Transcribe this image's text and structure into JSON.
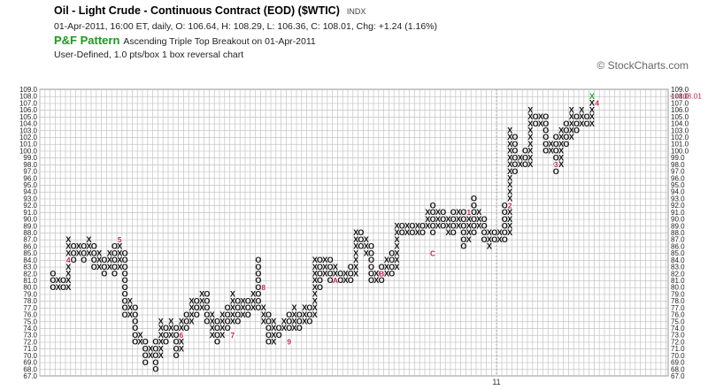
{
  "header": {
    "title": "Oil - Light Crude - Continuous Contract (EOD) ($WTIC)",
    "symbol_tag": "INDX",
    "ohlc_line": "01-Apr-2011, 16:00 ET, daily, O: 106.64, H: 108.29, L: 106.36, C: 108.01, Chg: +1.24 (1.16%)",
    "pattern_label": "P&F Pattern",
    "pattern_desc": "Ascending Triple Top Breakout on 01-Apr-2011",
    "settings": "User-Defined, 1.0 pts/box 1 box reversal chart"
  },
  "watermark": "© StockCharts.com",
  "colors": {
    "x_mark": "#111111",
    "o_mark": "#111111",
    "month_marker": "#cc2255",
    "latest_x": "#22aa22",
    "last_price": "#cc2255",
    "pattern_green": "#1e9a1e",
    "grid": "#c4c4c4"
  },
  "chart_data": {
    "type": "point-and-figure",
    "box_size": 1.0,
    "reversal": 1,
    "ylim": [
      67,
      109
    ],
    "y_ticks": [
      67,
      68,
      69,
      70,
      71,
      72,
      73,
      74,
      75,
      76,
      77,
      78,
      79,
      80,
      81,
      82,
      83,
      84,
      85,
      86,
      87,
      88,
      89,
      90,
      91,
      92,
      93,
      94,
      95,
      96,
      97,
      98,
      99,
      100,
      101,
      102,
      103,
      104,
      105,
      106,
      107,
      108,
      109
    ],
    "last_price": 108.01,
    "last_price_label": "108.01",
    "x_axis_label": "11",
    "columns": [
      {
        "type": "O",
        "high": 82,
        "low": 80
      },
      {
        "type": "X",
        "high": 81,
        "low": 80
      },
      {
        "type": "O",
        "high": 81,
        "low": 80
      },
      {
        "type": "X",
        "high": 87,
        "low": 80
      },
      {
        "type": "O",
        "high": 86,
        "low": 84
      },
      {
        "type": "X",
        "high": 86,
        "low": 85
      },
      {
        "type": "O",
        "high": 86,
        "low": 84
      },
      {
        "type": "X",
        "high": 87,
        "low": 85
      },
      {
        "type": "O",
        "high": 86,
        "low": 83
      },
      {
        "type": "X",
        "high": 85,
        "low": 83
      },
      {
        "type": "O",
        "high": 84,
        "low": 82
      },
      {
        "type": "X",
        "high": 85,
        "low": 83
      },
      {
        "type": "O",
        "high": 86,
        "low": 82
      },
      {
        "type": "X",
        "high": 87,
        "low": 83
      },
      {
        "type": "O",
        "high": 85,
        "low": 76
      },
      {
        "type": "X",
        "high": 78,
        "low": 76
      },
      {
        "type": "O",
        "high": 77,
        "low": 72
      },
      {
        "type": "X",
        "high": 73,
        "low": 72
      },
      {
        "type": "O",
        "high": 72,
        "low": 69
      },
      {
        "type": "X",
        "high": 71,
        "low": 70
      },
      {
        "type": "O",
        "high": 72,
        "low": 68
      },
      {
        "type": "X",
        "high": 75,
        "low": 70
      },
      {
        "type": "O",
        "high": 74,
        "low": 72
      },
      {
        "type": "X",
        "high": 75,
        "low": 73
      },
      {
        "type": "O",
        "high": 74,
        "low": 70
      },
      {
        "type": "X",
        "high": 75,
        "low": 71
      },
      {
        "type": "O",
        "high": 76,
        "low": 74
      },
      {
        "type": "X",
        "high": 78,
        "low": 75
      },
      {
        "type": "O",
        "high": 78,
        "low": 76
      },
      {
        "type": "X",
        "high": 79,
        "low": 77
      },
      {
        "type": "O",
        "high": 79,
        "low": 75
      },
      {
        "type": "X",
        "high": 76,
        "low": 73
      },
      {
        "type": "O",
        "high": 75,
        "low": 72
      },
      {
        "type": "X",
        "high": 76,
        "low": 73
      },
      {
        "type": "O",
        "high": 77,
        "low": 74
      },
      {
        "type": "X",
        "high": 79,
        "low": 75
      },
      {
        "type": "O",
        "high": 78,
        "low": 75
      },
      {
        "type": "X",
        "high": 78,
        "low": 76
      },
      {
        "type": "O",
        "high": 78,
        "low": 76
      },
      {
        "type": "X",
        "high": 79,
        "low": 77
      },
      {
        "type": "O",
        "high": 84,
        "low": 77
      },
      {
        "type": "X",
        "high": 77,
        "low": 75
      },
      {
        "type": "O",
        "high": 76,
        "low": 72
      },
      {
        "type": "X",
        "high": 75,
        "low": 72
      },
      {
        "type": "O",
        "high": 74,
        "low": 73
      },
      {
        "type": "X",
        "high": 75,
        "low": 74
      },
      {
        "type": "O",
        "high": 76,
        "low": 74
      },
      {
        "type": "X",
        "high": 77,
        "low": 74
      },
      {
        "type": "O",
        "high": 76,
        "low": 74
      },
      {
        "type": "X",
        "high": 77,
        "low": 75
      },
      {
        "type": "O",
        "high": 77,
        "low": 75
      },
      {
        "type": "X",
        "high": 84,
        "low": 76
      },
      {
        "type": "O",
        "high": 84,
        "low": 80
      },
      {
        "type": "X",
        "high": 84,
        "low": 82
      },
      {
        "type": "O",
        "high": 84,
        "low": 81
      },
      {
        "type": "X",
        "high": 83,
        "low": 81
      },
      {
        "type": "O",
        "high": 82,
        "low": 81
      },
      {
        "type": "X",
        "high": 82,
        "low": 81
      },
      {
        "type": "O",
        "high": 83,
        "low": 81
      },
      {
        "type": "X",
        "high": 88,
        "low": 82
      },
      {
        "type": "O",
        "high": 88,
        "low": 86
      },
      {
        "type": "X",
        "high": 87,
        "low": 85
      },
      {
        "type": "O",
        "high": 86,
        "low": 81
      },
      {
        "type": "X",
        "high": 82,
        "low": 81
      },
      {
        "type": "O",
        "high": 83,
        "low": 81
      },
      {
        "type": "X",
        "high": 84,
        "low": 82
      },
      {
        "type": "O",
        "high": 85,
        "low": 82
      },
      {
        "type": "X",
        "high": 89,
        "low": 83
      },
      {
        "type": "O",
        "high": 89,
        "low": 88
      },
      {
        "type": "X",
        "high": 89,
        "low": 88
      },
      {
        "type": "O",
        "high": 89,
        "low": 88
      },
      {
        "type": "X",
        "high": 89,
        "low": 88
      },
      {
        "type": "O",
        "high": 89,
        "low": 88
      },
      {
        "type": "X",
        "high": 91,
        "low": 89
      },
      {
        "type": "O",
        "high": 92,
        "low": 88
      },
      {
        "type": "X",
        "high": 91,
        "low": 89
      },
      {
        "type": "O",
        "high": 91,
        "low": 89
      },
      {
        "type": "X",
        "high": 90,
        "low": 88
      },
      {
        "type": "O",
        "high": 91,
        "low": 88
      },
      {
        "type": "X",
        "high": 91,
        "low": 89
      },
      {
        "type": "O",
        "high": 91,
        "low": 86
      },
      {
        "type": "X",
        "high": 91,
        "low": 87
      },
      {
        "type": "O",
        "high": 93,
        "low": 88
      },
      {
        "type": "X",
        "high": 91,
        "low": 89
      },
      {
        "type": "O",
        "high": 90,
        "low": 87
      },
      {
        "type": "X",
        "high": 88,
        "low": 86
      },
      {
        "type": "O",
        "high": 88,
        "low": 87
      },
      {
        "type": "X",
        "high": 88,
        "low": 87
      },
      {
        "type": "O",
        "high": 92,
        "low": 87
      },
      {
        "type": "X",
        "high": 103,
        "low": 88
      },
      {
        "type": "O",
        "high": 102,
        "low": 97
      },
      {
        "type": "X",
        "high": 99,
        "low": 98
      },
      {
        "type": "O",
        "high": 100,
        "low": 98
      },
      {
        "type": "X",
        "high": 106,
        "low": 98
      },
      {
        "type": "O",
        "high": 105,
        "low": 104
      },
      {
        "type": "X",
        "high": 105,
        "low": 104
      },
      {
        "type": "O",
        "high": 105,
        "low": 100
      },
      {
        "type": "X",
        "high": 101,
        "low": 100
      },
      {
        "type": "O",
        "high": 102,
        "low": 97
      },
      {
        "type": "X",
        "high": 103,
        "low": 98
      },
      {
        "type": "O",
        "high": 104,
        "low": 101
      },
      {
        "type": "X",
        "high": 106,
        "low": 102
      },
      {
        "type": "O",
        "high": 105,
        "low": 103
      },
      {
        "type": "X",
        "high": 106,
        "low": 104
      },
      {
        "type": "O",
        "high": 105,
        "low": 104
      },
      {
        "type": "X",
        "high": 108,
        "low": 104
      }
    ],
    "month_markers": [
      {
        "label": "4",
        "column": 3,
        "y": 84
      },
      {
        "label": "5",
        "column": 13,
        "y": 87
      },
      {
        "label": "6",
        "column": 25,
        "y": 73
      },
      {
        "label": "7",
        "column": 35,
        "y": 73
      },
      {
        "label": "8",
        "column": 41,
        "y": 80
      },
      {
        "label": "9",
        "column": 46,
        "y": 72
      },
      {
        "label": "A",
        "column": 55,
        "y": 81
      },
      {
        "label": "B",
        "column": 64,
        "y": 82
      },
      {
        "label": "C",
        "column": 74,
        "y": 85
      },
      {
        "label": "1",
        "column": 81,
        "y": 91
      },
      {
        "label": "2",
        "column": 89,
        "y": 92
      },
      {
        "label": "3",
        "column": 98,
        "y": 98
      },
      {
        "label": "4",
        "column": 106,
        "y": 107
      }
    ]
  }
}
